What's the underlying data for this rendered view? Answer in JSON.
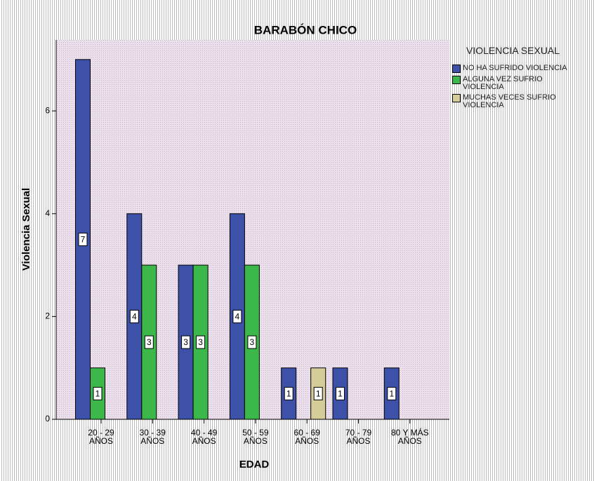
{
  "chart_data": {
    "type": "bar",
    "title": "BARABÓN CHICO",
    "x_label": "EDAD",
    "y_label": "Violencia Sexual",
    "categories": [
      [
        "20 - 29",
        "AÑOS"
      ],
      [
        "30 - 39",
        "AÑOS"
      ],
      [
        "40 - 49",
        "AÑOS"
      ],
      [
        "50 - 59",
        "AÑOS"
      ],
      [
        "60 - 69",
        "AÑOS"
      ],
      [
        "70 - 79",
        "AÑOS"
      ],
      [
        "80 Y MÁS",
        "AÑOS"
      ]
    ],
    "legend_title": "VIOLENCIA SEXUAL",
    "series": [
      {
        "name": "NO HA SUFRIDO VIOLENCIA",
        "color": "#3d51a8",
        "values": [
          7,
          4,
          3,
          4,
          1,
          1,
          1
        ]
      },
      {
        "name": "ALGUNA VEZ SUFRIO VIOLENCIA",
        "color": "#3cb84a",
        "values": [
          1,
          3,
          3,
          3,
          null,
          null,
          null
        ]
      },
      {
        "name": "MUCHAS VECES SUFRIO VIOLENCIA",
        "color": "#d5cc98",
        "values": [
          null,
          null,
          null,
          null,
          1,
          null,
          null
        ]
      }
    ],
    "ylim": [
      0,
      7.38
    ],
    "yticks": [
      0,
      2,
      4,
      6
    ],
    "legend": "right"
  }
}
